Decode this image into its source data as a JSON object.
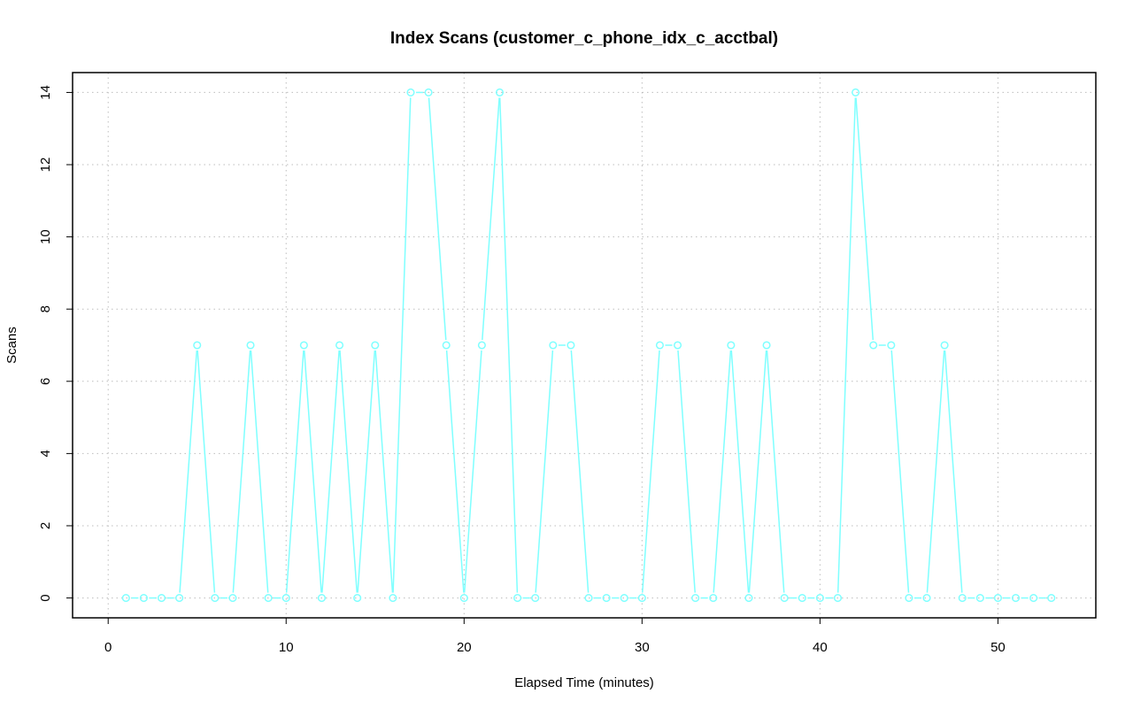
{
  "chart_data": {
    "type": "line",
    "title": "Index Scans (customer_c_phone_idx_c_acctbal)",
    "xlabel": "Elapsed Time (minutes)",
    "ylabel": "Scans",
    "xlim": [
      -2,
      55.5
    ],
    "ylim": [
      -0.55,
      14.55
    ],
    "xticks": [
      0,
      10,
      20,
      30,
      40,
      50
    ],
    "yticks": [
      0,
      2,
      4,
      6,
      8,
      10,
      12,
      14
    ],
    "grid": true,
    "marker": "open-circle",
    "series": [
      {
        "color": "#7fffff",
        "x": [
          1,
          2,
          3,
          4,
          5,
          6,
          7,
          8,
          9,
          10,
          11,
          12,
          13,
          14,
          15,
          16,
          17,
          18,
          19,
          20,
          21,
          22,
          23,
          24,
          25,
          26,
          27,
          28,
          29,
          30,
          31,
          32,
          33,
          34,
          35,
          36,
          37,
          38,
          39,
          40,
          41,
          42,
          43,
          44,
          45,
          46,
          47,
          48,
          49,
          50,
          51,
          52,
          53
        ],
        "y": [
          0,
          0,
          0,
          0,
          7,
          0,
          0,
          7,
          0,
          0,
          7,
          0,
          7,
          0,
          7,
          0,
          14,
          14,
          7,
          0,
          7,
          14,
          0,
          0,
          7,
          7,
          0,
          0,
          0,
          0,
          7,
          7,
          0,
          0,
          7,
          0,
          7,
          0,
          0,
          0,
          0,
          14,
          7,
          7,
          0,
          0,
          7,
          0,
          0,
          0,
          0,
          0,
          0
        ]
      }
    ]
  }
}
